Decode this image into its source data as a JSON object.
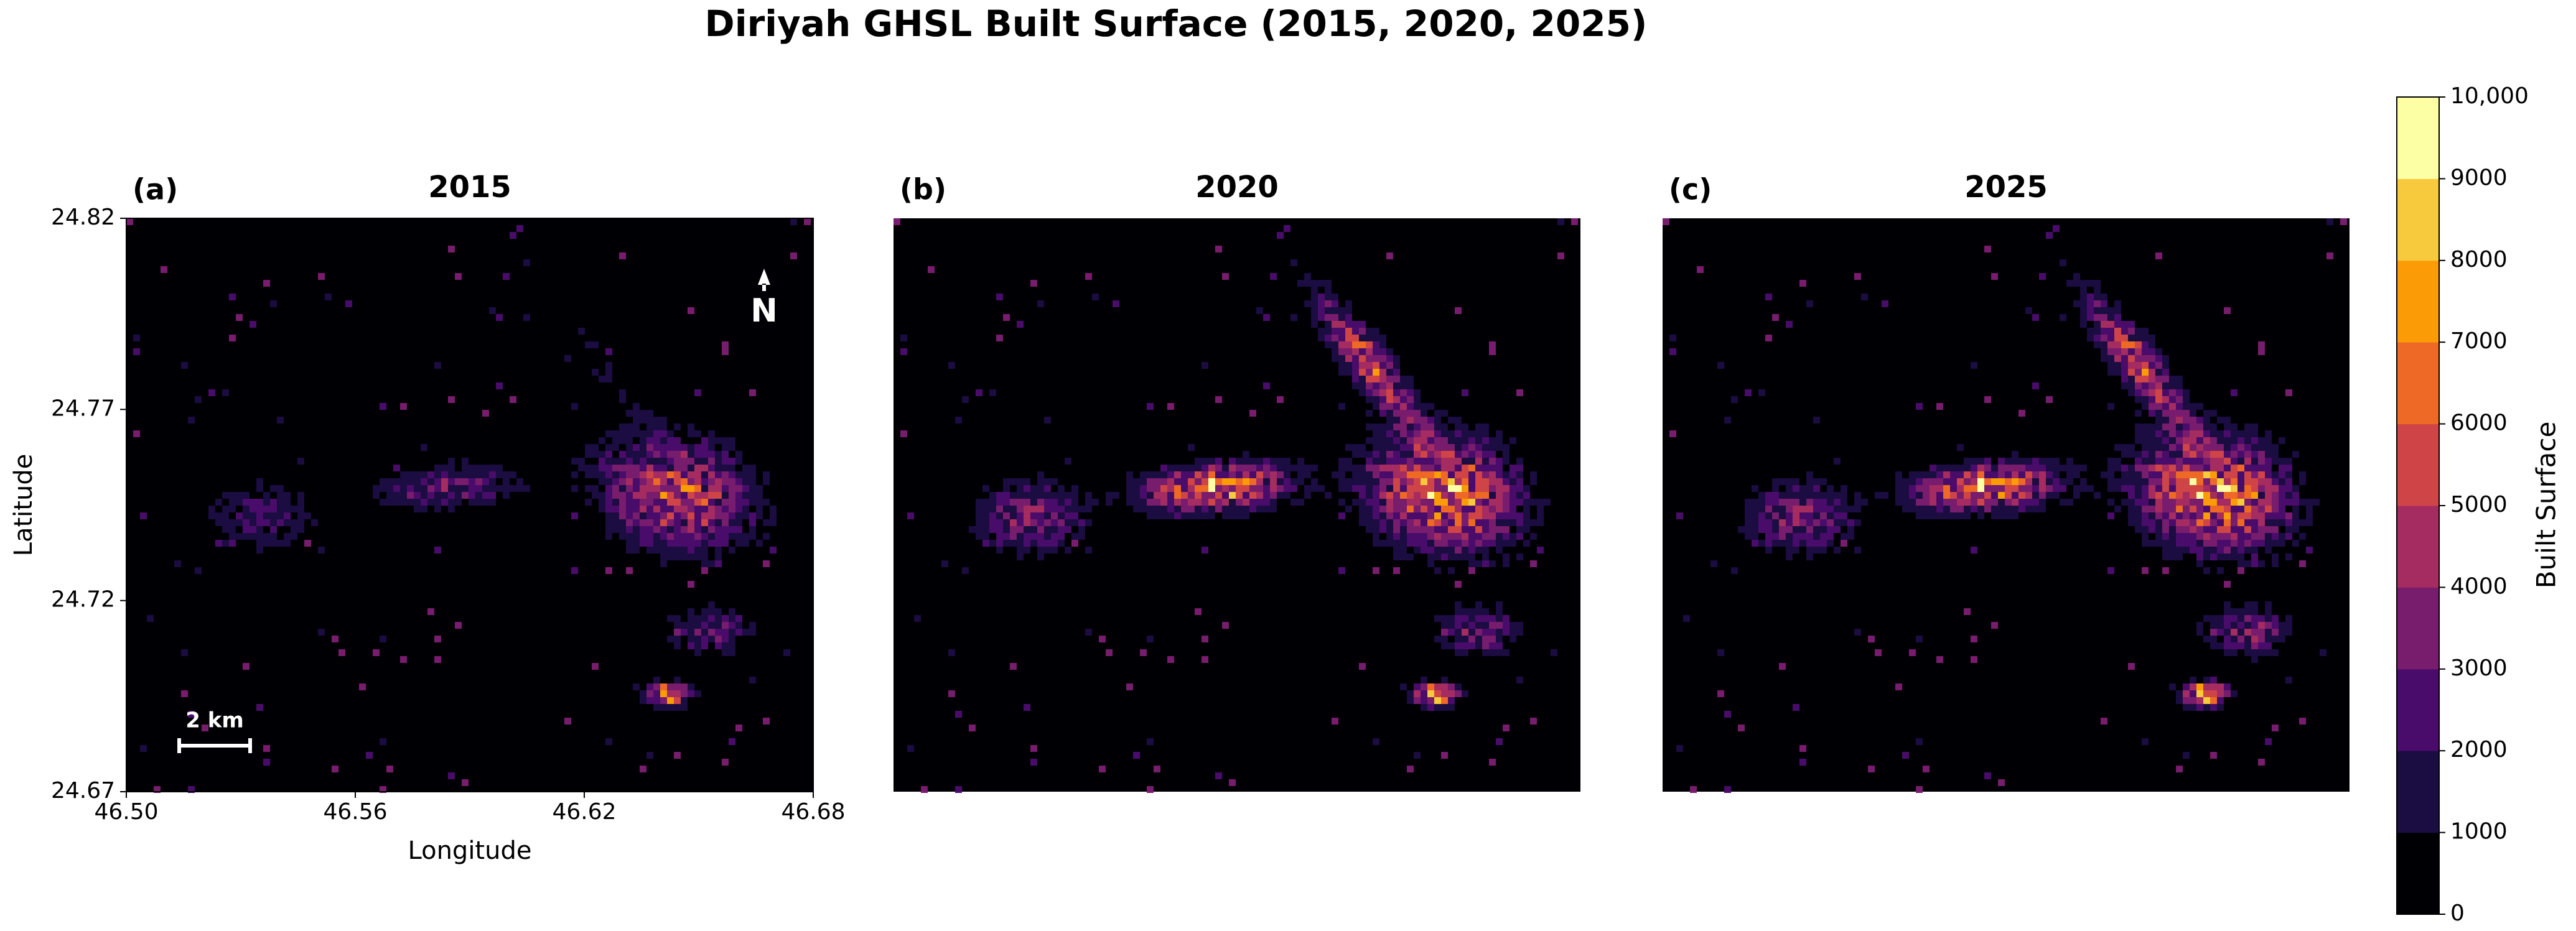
{
  "title": "Diriyah GHSL Built Surface (2015, 2020, 2025)",
  "panels": [
    {
      "label": "(a)",
      "title": "2015"
    },
    {
      "label": "(b)",
      "title": "2020"
    },
    {
      "label": "(c)",
      "title": "2025"
    }
  ],
  "axes": {
    "xlabel": "Longitude",
    "ylabel": "Latitude",
    "xlim": [
      46.5,
      46.68
    ],
    "ylim": [
      24.67,
      24.82
    ],
    "xticks": [
      {
        "value": 46.5,
        "label": "46.50"
      },
      46.56,
      46.62,
      {
        "value": 46.68,
        "label": "46.68"
      }
    ],
    "yticks": [
      24.67,
      24.72,
      24.77,
      24.82
    ]
  },
  "north_arrow": "N",
  "scale_bar": "2 km",
  "colorbar": {
    "label": "Built Surface",
    "lim": [
      0,
      10000
    ],
    "ticks": [
      0,
      1000,
      2000,
      3000,
      4000,
      5000,
      6000,
      7000,
      8000,
      9000,
      {
        "value": 10000,
        "label": "10,000"
      }
    ],
    "colors": [
      "#000004",
      "#1b0c41",
      "#4a0c6b",
      "#781c6d",
      "#a52c60",
      "#cf4446",
      "#ed6925",
      "#fb9b06",
      "#f7c93d",
      "#fcffa4"
    ]
  }
}
